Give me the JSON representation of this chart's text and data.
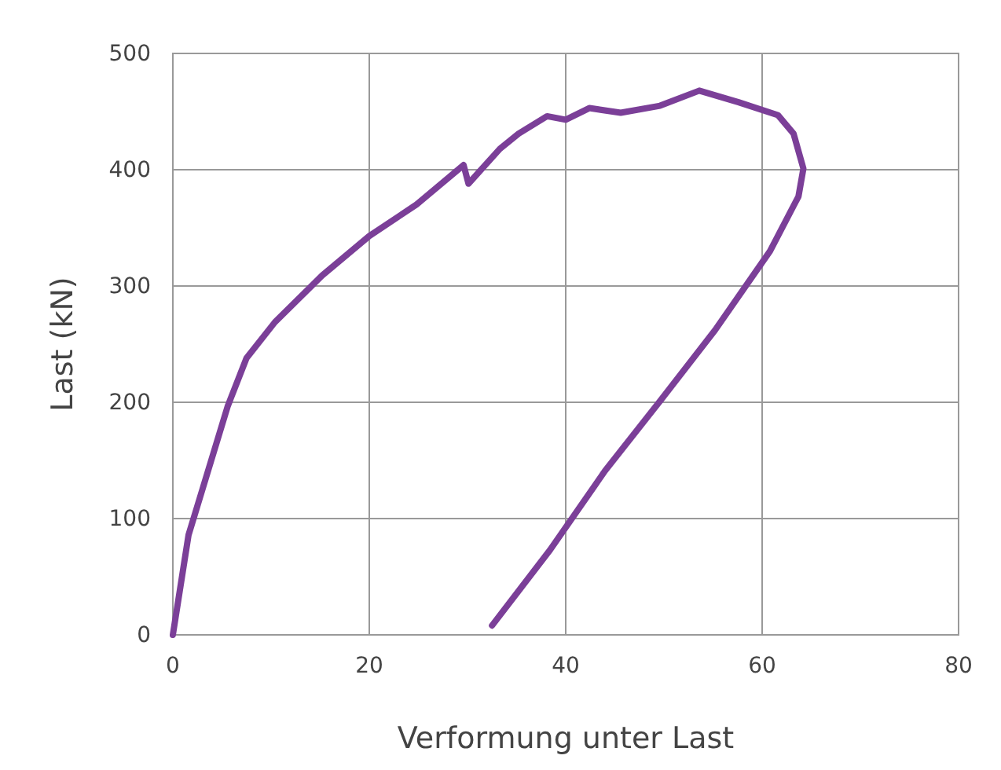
{
  "chart_data": {
    "type": "line",
    "xlabel": "Verformung unter Last",
    "ylabel": "Last (kN)",
    "xlim": [
      0,
      80
    ],
    "xticks": [
      0,
      20,
      40,
      60,
      80
    ],
    "ylim": [
      0,
      500
    ],
    "yticks": [
      0,
      100,
      200,
      300,
      400,
      500
    ],
    "grid": true,
    "series": [
      {
        "color": "#7b3f98",
        "x": [
          0,
          1.6,
          5.6,
          7.5,
          10.4,
          15.2,
          20,
          24.8,
          29.6,
          30.1,
          33.3,
          35.2,
          38.1,
          40,
          42.4,
          45.6,
          49.6,
          53.6,
          57.6,
          61.6,
          63.2,
          64.2,
          63.7,
          60.8,
          55.2,
          49.6,
          44,
          38.4,
          32.5
        ],
        "values": [
          0,
          86,
          197,
          238,
          269,
          309,
          343,
          370,
          404,
          388,
          418,
          431,
          446,
          443,
          453,
          449,
          455,
          468,
          458,
          447,
          431,
          401,
          377,
          330,
          262,
          201,
          141,
          73,
          8
        ]
      }
    ]
  }
}
